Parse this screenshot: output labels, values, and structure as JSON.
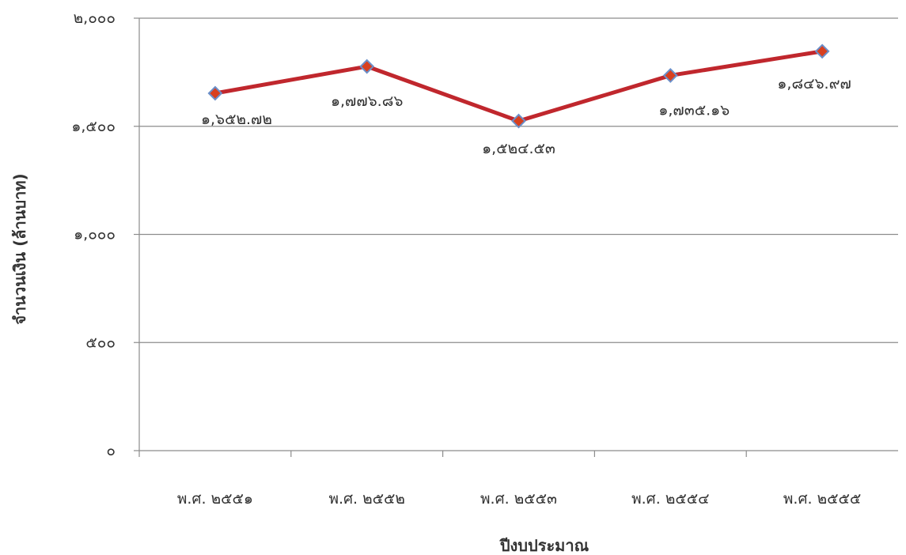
{
  "chart_data": {
    "type": "line",
    "title": "",
    "xlabel": "ปีงบประมาณ",
    "ylabel": "จำนวนเงิน (ล้านบาท)",
    "ylim": [
      0,
      2000
    ],
    "yticks": [
      0,
      500,
      1000,
      1500,
      2000
    ],
    "ytick_labels": [
      "๐",
      "๕๐๐",
      "๑,๐๐๐",
      "๑,๕๐๐",
      "๒,๐๐๐"
    ],
    "categories": [
      "พ.ศ. ๒๕๕๑",
      "พ.ศ. ๒๕๕๒",
      "พ.ศ. ๒๕๕๓",
      "พ.ศ. ๒๕๕๔",
      "พ.ศ. ๒๕๕๕"
    ],
    "series": [
      {
        "values": [
          1652.72,
          1776.86,
          1524.53,
          1735.16,
          1846.97
        ],
        "data_labels": [
          "๑,๖๕๒.๗๒",
          "๑,๗๗๖.๘๖",
          "๑,๕๒๔.๕๓",
          "๑,๗๓๕.๑๖",
          "๑,๘๔๖.๙๗"
        ],
        "line_color": "#c0272d",
        "marker_color": "#d8401f",
        "marker_edge_color": "#6b8fc9"
      }
    ],
    "grid": true,
    "legend": "none"
  }
}
